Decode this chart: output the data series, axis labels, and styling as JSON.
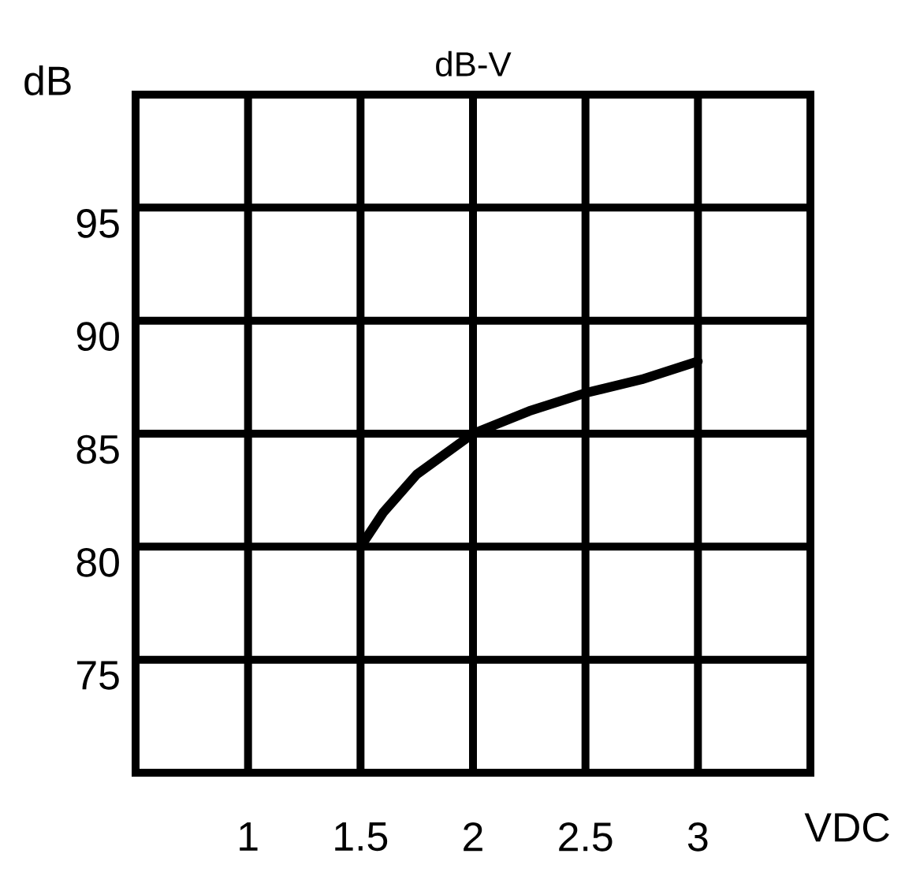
{
  "chart_data": {
    "type": "line",
    "title": "dB-V",
    "xlabel": "VDC",
    "ylabel": "dB",
    "x": [
      1.5,
      1.6,
      1.75,
      2,
      2.25,
      2.5,
      2.75,
      3
    ],
    "series": [
      {
        "color": "#000000",
        "values": [
          80,
          81.5,
          83.2,
          85,
          86,
          86.8,
          87.4,
          88.2
        ]
      }
    ],
    "xlim": [
      0.5,
      3.5
    ],
    "ylim": [
      70,
      100
    ],
    "xticks": [
      1,
      1.5,
      2,
      2.5,
      3
    ],
    "yticks": [
      75,
      80,
      85,
      90,
      95
    ],
    "grid": true,
    "marker": "none",
    "line_style": "solid"
  }
}
